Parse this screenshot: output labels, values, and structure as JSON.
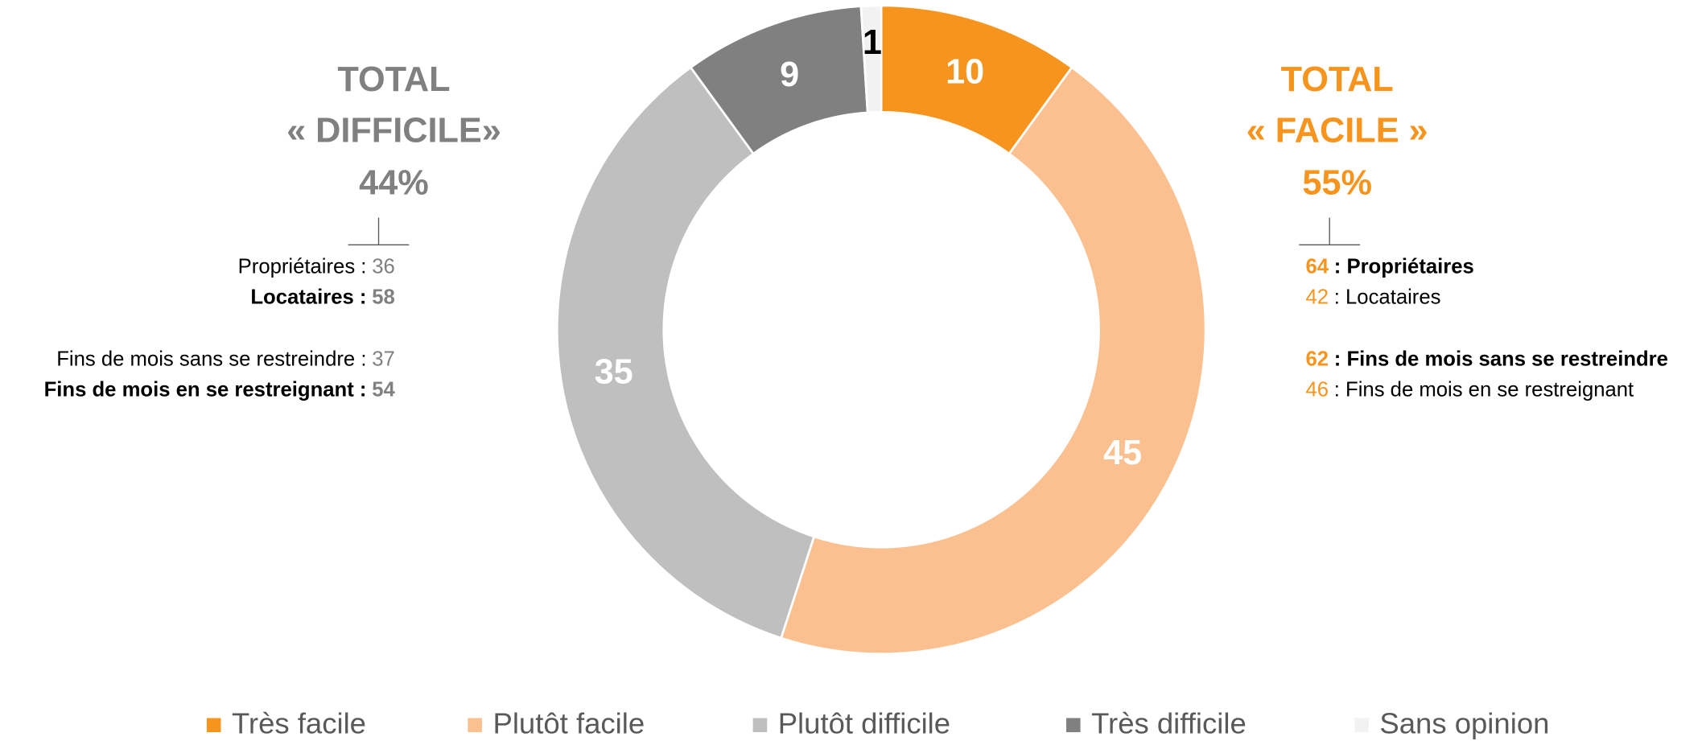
{
  "chart_data": {
    "type": "donut",
    "categories": [
      "Très facile",
      "Plutôt facile",
      "Plutôt difficile",
      "Très difficile",
      "Sans opinion"
    ],
    "values": [
      10,
      45,
      35,
      9,
      1
    ],
    "colors": [
      "#f7941d",
      "#fac090",
      "#bfbfbf",
      "#808080",
      "#f2f2f2"
    ],
    "label_colors": [
      "#ffffff",
      "#ffffff",
      "#ffffff",
      "#ffffff",
      "#000000"
    ],
    "legend": "bottom"
  },
  "panels": [
    {
      "side": "left",
      "color": "#808080",
      "title": [
        "TOTAL",
        "« DIFFICILE»"
      ],
      "total": "44%",
      "items": [
        {
          "label": "Propriétaires :",
          "value": 36,
          "bold": false
        },
        {
          "label": "Locataires :",
          "value": 58,
          "bold": true
        },
        {
          "label": "Fins de mois sans se restreindre :",
          "value": 37,
          "bold": false
        },
        {
          "label": "Fins de mois en se restreignant :",
          "value": 54,
          "bold": true
        }
      ]
    },
    {
      "side": "right",
      "color": "#f7941d",
      "title": [
        "TOTAL",
        "« FACILE »"
      ],
      "total": "55%",
      "items": [
        {
          "label": ": Propriétaires",
          "value": 64,
          "bold": true
        },
        {
          "label": ": Locataires",
          "value": 42,
          "bold": false
        },
        {
          "label": ": Fins de mois sans se restreindre",
          "value": 62,
          "bold": true
        },
        {
          "label": ": Fins de mois en se restreignant",
          "value": 46,
          "bold": false
        }
      ]
    }
  ]
}
